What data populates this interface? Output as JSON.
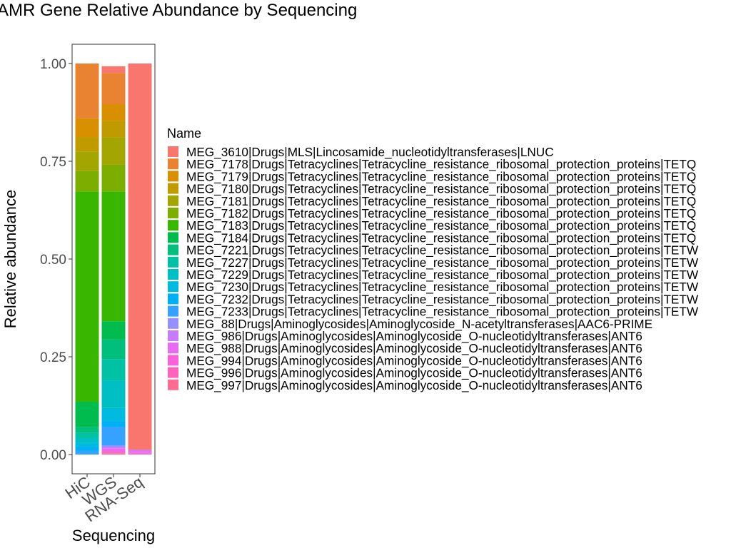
{
  "chart_data": {
    "type": "bar",
    "title": "AMR Gene Relative Abundance by Sequencing",
    "xlabel": "Sequencing",
    "ylabel": "Relative abundance",
    "legend_title": "Name",
    "legend_position": "right",
    "grid": false,
    "ylim": [
      0,
      1
    ],
    "yticks": [
      0.0,
      0.25,
      0.5,
      0.75,
      1.0
    ],
    "ytick_labels": [
      "0.00",
      "0.25",
      "0.50",
      "0.75",
      "1.00"
    ],
    "categories": [
      "HiC",
      "WGS",
      "RNA-Seq"
    ],
    "series": [
      {
        "name": "MEG_3610|Drugs|MLS|Lincosamide_nucleotidyltransferases|LNUC",
        "color": "#F8766D",
        "values": [
          0.0,
          0.017,
          0.988
        ]
      },
      {
        "name": "MEG_7178|Drugs|Tetracyclines|Tetracycline_resistance_ribosomal_protection_proteins|TETQ",
        "color": "#EA8331",
        "values": [
          0.14,
          0.08,
          0.0
        ]
      },
      {
        "name": "MEG_7179|Drugs|Tetracyclines|Tetracycline_resistance_ribosomal_protection_proteins|TETQ",
        "color": "#D89000",
        "values": [
          0.048,
          0.043,
          0.0
        ]
      },
      {
        "name": "MEG_7180|Drugs|Tetracyclines|Tetracycline_resistance_ribosomal_protection_proteins|TETQ",
        "color": "#C09B00",
        "values": [
          0.037,
          0.042,
          0.0
        ]
      },
      {
        "name": "MEG_7181|Drugs|Tetracyclines|Tetracycline_resistance_ribosomal_protection_proteins|TETQ",
        "color": "#A3A500",
        "values": [
          0.05,
          0.07,
          0.0
        ]
      },
      {
        "name": "MEG_7182|Drugs|Tetracyclines|Tetracycline_resistance_ribosomal_protection_proteins|TETQ",
        "color": "#7CAE00",
        "values": [
          0.052,
          0.068,
          0.0
        ]
      },
      {
        "name": "MEG_7183|Drugs|Tetracyclines|Tetracycline_resistance_ribosomal_protection_proteins|TETQ",
        "color": "#39B600",
        "values": [
          0.538,
          0.332,
          0.0
        ]
      },
      {
        "name": "MEG_7184|Drugs|Tetracyclines|Tetracycline_resistance_ribosomal_protection_proteins|TETQ",
        "color": "#00BB4E",
        "values": [
          0.065,
          0.047,
          0.0
        ]
      },
      {
        "name": "MEG_7221|Drugs|Tetracyclines|Tetracycline_resistance_ribosomal_protection_proteins|TETW",
        "color": "#00BF7D",
        "values": [
          0.015,
          0.05,
          0.0
        ]
      },
      {
        "name": "MEG_7227|Drugs|Tetracyclines|Tetracycline_resistance_ribosomal_protection_proteins|TETW",
        "color": "#00C1A3",
        "values": [
          0.013,
          0.055,
          0.0
        ]
      },
      {
        "name": "MEG_7229|Drugs|Tetracyclines|Tetracycline_resistance_ribosomal_protection_proteins|TETW",
        "color": "#00BFC4",
        "values": [
          0.012,
          0.07,
          0.0
        ]
      },
      {
        "name": "MEG_7230|Drugs|Tetracyclines|Tetracycline_resistance_ribosomal_protection_proteins|TETW",
        "color": "#00BAE0",
        "values": [
          0.01,
          0.035,
          0.0
        ]
      },
      {
        "name": "MEG_7232|Drugs|Tetracyclines|Tetracycline_resistance_ribosomal_protection_proteins|TETW",
        "color": "#00B0F6",
        "values": [
          0.01,
          0.013,
          0.0
        ]
      },
      {
        "name": "MEG_7233|Drugs|Tetracyclines|Tetracycline_resistance_ribosomal_protection_proteins|TETW",
        "color": "#35A2FF",
        "values": [
          0.01,
          0.048,
          0.0
        ]
      },
      {
        "name": "MEG_88|Drugs|Aminoglycosides|Aminoglycoside_N-acetyltransferases|AAC6-PRIME",
        "color": "#9590FF",
        "values": [
          0.0,
          0.003,
          0.0
        ]
      },
      {
        "name": "MEG_986|Drugs|Aminoglycosides|Aminoglycoside_O-nucleotidyltransferases|ANT6",
        "color": "#C77CFF",
        "values": [
          0.0,
          0.004,
          0.003
        ]
      },
      {
        "name": "MEG_988|Drugs|Aminoglycosides|Aminoglycoside_O-nucleotidyltransferases|ANT6",
        "color": "#E76BF3",
        "values": [
          0.0,
          0.006,
          0.005
        ]
      },
      {
        "name": "MEG_994|Drugs|Aminoglycosides|Aminoglycoside_O-nucleotidyltransferases|ANT6",
        "color": "#FA62DB",
        "values": [
          0.0,
          0.004,
          0.002
        ]
      },
      {
        "name": "MEG_996|Drugs|Aminoglycosides|Aminoglycoside_O-nucleotidyltransferases|ANT6",
        "color": "#FF62BC",
        "values": [
          0.0,
          0.003,
          0.001
        ]
      },
      {
        "name": "MEG_997|Drugs|Aminoglycosides|Aminoglycoside_O-nucleotidyltransferases|ANT6",
        "color": "#FF6C91",
        "values": [
          0.0,
          0.003,
          0.001
        ]
      }
    ]
  }
}
